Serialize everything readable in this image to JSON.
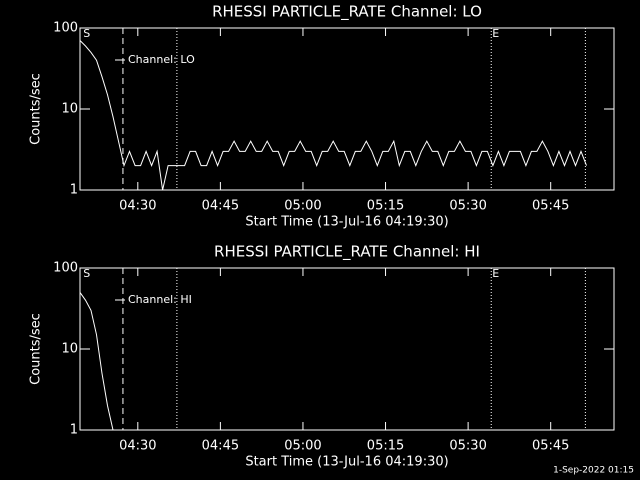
{
  "chart_data": [
    {
      "type": "line",
      "title": "RHESSI PARTICLE_RATE Channel: LO",
      "xlabel": "Start Time (13-Jul-16 04:19:30)",
      "ylabel": "Counts/sec",
      "log_scale": true,
      "xlim": [
        0,
        97
      ],
      "ylim": [
        1,
        100
      ],
      "yticks": [
        1,
        10,
        100
      ],
      "xticks": [
        {
          "value": 10.5,
          "label": "04:30"
        },
        {
          "value": 25.5,
          "label": "04:45"
        },
        {
          "value": 40.5,
          "label": "05:00"
        },
        {
          "value": 55.5,
          "label": "05:15"
        },
        {
          "value": 70.5,
          "label": "05:30"
        },
        {
          "value": 85.5,
          "label": "05:45"
        }
      ],
      "vlines": [
        {
          "x": 7.8,
          "style": "dashed"
        },
        {
          "x": 17.6,
          "style": "dotted"
        },
        {
          "x": 74.7,
          "style": "dotted"
        },
        {
          "x": 91.8,
          "style": "dotted"
        }
      ],
      "annotations": [
        {
          "text": "S",
          "x": 0.4
        },
        {
          "text": "E",
          "x": 74.7
        }
      ],
      "series": [
        {
          "name": "Channel: LO",
          "color": "#ffffff",
          "x": [
            0,
            1,
            2,
            3,
            4,
            5,
            6,
            7,
            8,
            9,
            10,
            11,
            12,
            13,
            14,
            15,
            16,
            17,
            18,
            19,
            20,
            21,
            22,
            23,
            24,
            25,
            26,
            27,
            28,
            29,
            30,
            31,
            32,
            33,
            34,
            35,
            36,
            37,
            38,
            39,
            40,
            41,
            42,
            43,
            44,
            45,
            46,
            47,
            48,
            49,
            50,
            51,
            52,
            53,
            54,
            55,
            56,
            57,
            58,
            59,
            60,
            61,
            62,
            63,
            64,
            65,
            66,
            67,
            68,
            69,
            70,
            71,
            72,
            73,
            74,
            75,
            76,
            77,
            78,
            79,
            80,
            81,
            82,
            83,
            84,
            85,
            86,
            87,
            88,
            89,
            90,
            91,
            92
          ],
          "values": [
            70,
            60,
            50,
            40,
            25,
            15,
            8,
            4,
            2,
            3,
            2,
            2,
            3,
            2,
            3,
            1,
            2,
            2,
            2,
            2,
            3,
            3,
            2,
            2,
            3,
            2,
            3,
            3,
            4,
            3,
            3,
            4,
            3,
            3,
            4,
            3,
            3,
            2,
            3,
            3,
            4,
            3,
            3,
            2,
            3,
            3,
            4,
            3,
            3,
            2,
            3,
            3,
            4,
            3,
            2,
            3,
            3,
            4,
            2,
            3,
            3,
            2,
            3,
            4,
            3,
            3,
            2,
            3,
            3,
            4,
            3,
            3,
            2,
            3,
            3,
            2,
            3,
            2,
            3,
            3,
            3,
            2,
            3,
            3,
            4,
            3,
            2,
            3,
            2,
            3,
            2,
            3,
            2
          ]
        }
      ]
    },
    {
      "type": "line",
      "title": "RHESSI PARTICLE_RATE Channel: HI",
      "xlabel": "Start Time (13-Jul-16 04:19:30)",
      "ylabel": "Counts/sec",
      "log_scale": true,
      "xlim": [
        0,
        97
      ],
      "ylim": [
        1,
        100
      ],
      "yticks": [
        1,
        10,
        100
      ],
      "xticks": [
        {
          "value": 10.5,
          "label": "04:30"
        },
        {
          "value": 25.5,
          "label": "04:45"
        },
        {
          "value": 40.5,
          "label": "05:00"
        },
        {
          "value": 55.5,
          "label": "05:15"
        },
        {
          "value": 70.5,
          "label": "05:30"
        },
        {
          "value": 85.5,
          "label": "05:45"
        }
      ],
      "vlines": [
        {
          "x": 7.8,
          "style": "dashed"
        },
        {
          "x": 17.6,
          "style": "dotted"
        },
        {
          "x": 74.7,
          "style": "dotted"
        },
        {
          "x": 91.8,
          "style": "dotted"
        }
      ],
      "annotations": [
        {
          "text": "S",
          "x": 0.4
        },
        {
          "text": "E",
          "x": 74.7
        }
      ],
      "series": [
        {
          "name": "Channel: HI",
          "color": "#ffffff",
          "x": [
            0,
            1,
            2,
            3,
            4,
            5,
            6
          ],
          "values": [
            50,
            40,
            30,
            15,
            5,
            2,
            1
          ]
        }
      ]
    }
  ],
  "footer": "1-Sep-2022 01:15"
}
